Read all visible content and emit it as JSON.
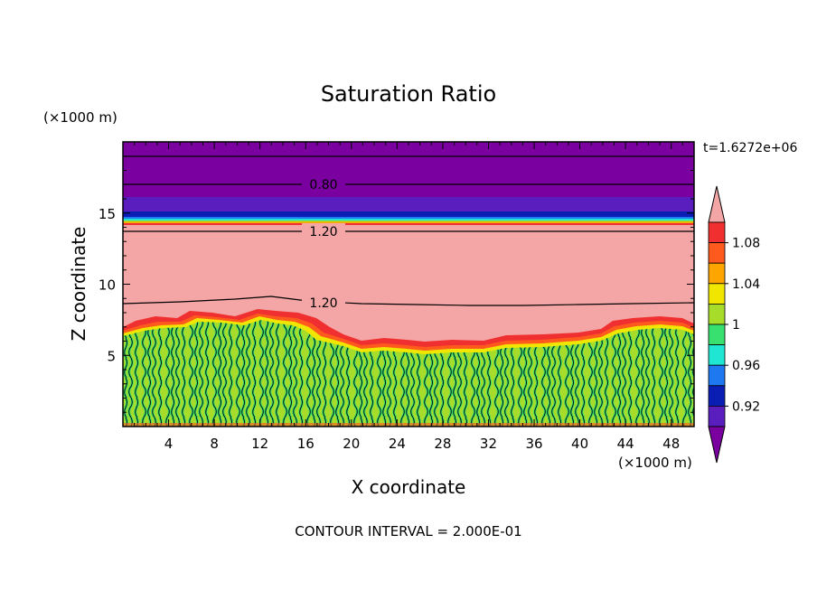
{
  "chart_data": {
    "type": "heatmap",
    "title": "Saturation Ratio",
    "xlabel": "X coordinate",
    "ylabel": "Z coordinate",
    "x_unit": "(×1000 m)",
    "y_unit": "(×1000 m)",
    "xlim": [
      0,
      50
    ],
    "ylim": [
      0,
      20
    ],
    "x_ticks": [
      "4",
      "8",
      "12",
      "16",
      "20",
      "24",
      "28",
      "32",
      "36",
      "40",
      "44",
      "48"
    ],
    "y_ticks": [
      "5",
      "10",
      "15"
    ],
    "time_label": "t=1.6272e+06",
    "footer": "CONTOUR INTERVAL = 2.000E-01",
    "contour_labels": [
      "0.80",
      "1.20",
      "1.20"
    ],
    "colorbar": {
      "tick_labels": [
        "1.08",
        "1.04",
        "1",
        "0.96",
        "0.92"
      ],
      "levels_top_to_bottom": [
        {
          "color": "#f4a6a6",
          "range": "> 1.10"
        },
        {
          "color": "#f03030",
          "range": "1.08 – 1.10"
        },
        {
          "color": "#ff5a1e",
          "range": "1.06 – 1.08"
        },
        {
          "color": "#ffa500",
          "range": "1.04 – 1.06"
        },
        {
          "color": "#f0e600",
          "range": "1.02 – 1.04"
        },
        {
          "color": "#a8dc2a",
          "range": "1.00 – 1.02"
        },
        {
          "color": "#38e070",
          "range": "0.98 – 1.00"
        },
        {
          "color": "#1ee6d2",
          "range": "0.96 – 0.98"
        },
        {
          "color": "#1e78f0",
          "range": "0.94 – 0.96"
        },
        {
          "color": "#0a1eb4",
          "range": "0.92 – 0.94"
        },
        {
          "color": "#5a1ebe",
          "range": "0.90 – 0.92"
        },
        {
          "color": "#7a00a0",
          "range": "< 0.90"
        }
      ]
    }
  }
}
